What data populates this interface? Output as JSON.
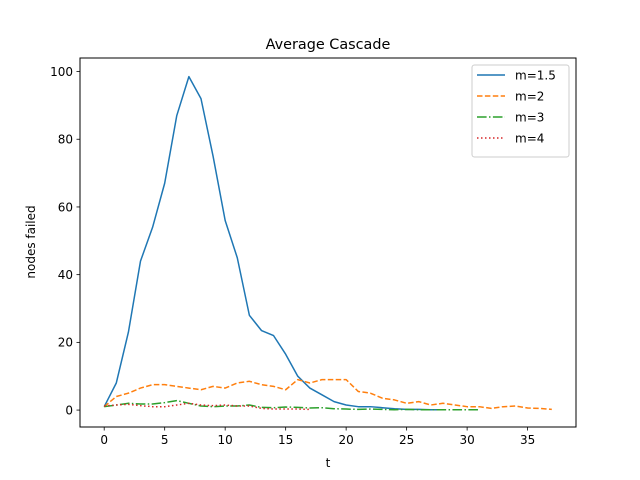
{
  "chart_data": {
    "type": "line",
    "title": "Average Cascade",
    "xlabel": "t",
    "ylabel": "nodes failed",
    "xlim": [
      -2,
      39
    ],
    "ylim": [
      -5,
      104
    ],
    "xticks": [
      0,
      5,
      10,
      15,
      20,
      25,
      30,
      35
    ],
    "yticks": [
      0,
      20,
      40,
      60,
      80,
      100
    ],
    "grid": false,
    "legend_position": "top-right",
    "series": [
      {
        "name": "m=1.5",
        "color": "#1f77b4",
        "style": "solid",
        "x": [
          0,
          1,
          2,
          3,
          4,
          5,
          6,
          7,
          8,
          9,
          10,
          11,
          12,
          13,
          14,
          15,
          16,
          17,
          18,
          19,
          20,
          21,
          22,
          23,
          24,
          25,
          26,
          27,
          28
        ],
        "y": [
          1,
          8,
          23,
          44,
          54,
          67,
          87,
          98.5,
          92,
          75,
          56,
          45,
          28,
          23.5,
          22,
          16.5,
          10,
          6.5,
          4.5,
          2.5,
          1.5,
          1,
          1,
          0.7,
          0.4,
          0.2,
          0.2,
          0.1,
          0.1
        ]
      },
      {
        "name": "m=2",
        "color": "#ff7f0e",
        "style": "dashed",
        "x": [
          0,
          1,
          2,
          3,
          4,
          5,
          6,
          7,
          8,
          9,
          10,
          11,
          12,
          13,
          14,
          15,
          16,
          17,
          18,
          19,
          20,
          21,
          22,
          23,
          24,
          25,
          26,
          27,
          28,
          29,
          30,
          31,
          32,
          33,
          34,
          35,
          36,
          37
        ],
        "y": [
          1,
          4,
          5,
          6.5,
          7.5,
          7.5,
          7,
          6.5,
          6,
          7,
          6.5,
          8,
          8.5,
          7.5,
          7,
          6,
          9,
          8,
          9,
          9,
          9,
          5.5,
          5,
          3.5,
          3,
          2,
          2.5,
          1.5,
          2,
          1.5,
          1,
          1,
          0.5,
          1,
          1.2,
          0.6,
          0.5,
          0.2
        ]
      },
      {
        "name": "m=3",
        "color": "#2ca02c",
        "style": "dashdot",
        "x": [
          0,
          1,
          2,
          3,
          4,
          5,
          6,
          7,
          8,
          9,
          10,
          11,
          12,
          13,
          14,
          15,
          16,
          17,
          18,
          19,
          20,
          21,
          22,
          23,
          24,
          25,
          26,
          27,
          28,
          29,
          30,
          31
        ],
        "y": [
          1,
          1.5,
          2,
          1.8,
          1.8,
          2.2,
          2.8,
          2,
          1.2,
          1,
          1.2,
          1.2,
          1.5,
          0.8,
          0.7,
          0.9,
          0.8,
          0.6,
          0.7,
          0.4,
          0.3,
          0.2,
          0.3,
          0.2,
          0.1,
          0.2,
          0.1,
          0.1,
          0.1,
          0.1,
          0.1,
          0.1
        ]
      },
      {
        "name": "m=4",
        "color": "#d62728",
        "style": "dotted",
        "x": [
          0,
          1,
          2,
          3,
          4,
          5,
          6,
          7,
          8,
          9,
          10,
          11,
          12,
          13,
          14,
          15,
          16,
          17
        ],
        "y": [
          1.2,
          1.5,
          1.7,
          1.3,
          1,
          1,
          1.5,
          2,
          1.5,
          1.3,
          1.5,
          1.2,
          1.2,
          0.5,
          0.3,
          0.3,
          0.3,
          0.2
        ]
      }
    ]
  }
}
